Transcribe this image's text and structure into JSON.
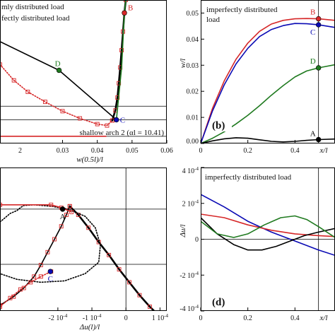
{
  "chart_data": [
    {
      "id": "a",
      "type": "line",
      "xlabel": "w(0.5l)/l",
      "ylabel": "",
      "xlim": [
        0.012,
        0.06
      ],
      "ylim": [
        0,
        10
      ],
      "x_ticks": [
        {
          "v": 0.03,
          "label": "0.03"
        },
        {
          "v": 0.04,
          "label": "0.04"
        },
        {
          "v": 0.05,
          "label": "0.05"
        },
        {
          "v": 0.06,
          "label": "0.06"
        }
      ],
      "x_tick_partial": {
        "v": 0.0183,
        "label": "2"
      },
      "legend": [
        "mly distributed load",
        "fectly distributed load"
      ],
      "annotation": "shallow arch 2 (αl = 10.41)",
      "hlines": [
        2.6,
        1.65,
        0.5
      ],
      "points": [
        {
          "label": "B",
          "x": 0.0478,
          "y": 9.1,
          "color": "#d62728"
        },
        {
          "label": "D",
          "x": 0.029,
          "y": 5.1,
          "color": "#1f7a1f"
        },
        {
          "label": "C",
          "x": 0.0455,
          "y": 1.65,
          "color": "#0a0ab4"
        }
      ],
      "series": [
        {
          "color": "#000000",
          "style": "solid-thick",
          "markers": true,
          "x": [
            0.0443,
            0.0452,
            0.0458,
            0.0462,
            0.0466,
            0.047,
            0.0474,
            0.0478,
            0.0482
          ],
          "y": [
            1.6,
            2.3,
            3.2,
            4.2,
            5.3,
            6.5,
            7.8,
            9.1,
            10.0
          ]
        },
        {
          "color": "#000000",
          "style": "solid",
          "markers": false,
          "x": [
            0.012,
            0.029,
            0.0455
          ],
          "y": [
            7.1,
            5.1,
            1.65
          ]
        },
        {
          "color": "#1f7a1f",
          "style": "solid",
          "markers": false,
          "x": [
            0.0455,
            0.047,
            0.0478,
            0.0482
          ],
          "y": [
            1.65,
            5.3,
            9.1,
            10.0
          ]
        },
        {
          "color": "#d62728",
          "style": "dotted",
          "markers": true,
          "x": [
            0.012,
            0.016,
            0.02,
            0.025,
            0.03,
            0.035,
            0.04,
            0.0428,
            0.0443
          ],
          "y": [
            5.5,
            4.4,
            3.6,
            2.9,
            2.25,
            1.75,
            1.35,
            1.25,
            1.6
          ]
        },
        {
          "color": "#d62728",
          "style": "solid",
          "markers": false,
          "x": [
            0.012,
            0.0425
          ],
          "y": [
            0.5,
            0.5
          ]
        }
      ]
    },
    {
      "id": "b",
      "type": "line",
      "panel_label": "(b)",
      "title": "imperfectly distributed load",
      "xlabel": "x/l",
      "ylabel": "w/l",
      "xlim": [
        0,
        0.57
      ],
      "ylim": [
        0,
        0.055
      ],
      "x_ticks": [
        {
          "v": 0,
          "label": "0"
        },
        {
          "v": 0.2,
          "label": "0.2"
        },
        {
          "v": 0.4,
          "label": "0.4"
        }
      ],
      "y_ticks": [
        {
          "v": 0,
          "label": "0.00"
        },
        {
          "v": 0.01,
          "label": "0.01"
        },
        {
          "v": 0.02,
          "label": "0.02"
        },
        {
          "v": 0.03,
          "label": "0.03"
        },
        {
          "v": 0.04,
          "label": "0.04"
        },
        {
          "v": 0.05,
          "label": "0.05"
        }
      ],
      "vline": 0.5,
      "points": [
        {
          "label": "B",
          "x": 0.5,
          "y": 0.0478,
          "color": "#d62728"
        },
        {
          "label": "C",
          "x": 0.5,
          "y": 0.0455,
          "color": "#0a0ab4"
        },
        {
          "label": "D",
          "x": 0.5,
          "y": 0.029,
          "color": "#1f7a1f"
        },
        {
          "label": "A",
          "x": 0.5,
          "y": 0.0015,
          "color": "#000000"
        }
      ],
      "series": [
        {
          "color": "#d62728",
          "x": [
            0,
            0.05,
            0.1,
            0.15,
            0.2,
            0.25,
            0.3,
            0.35,
            0.4,
            0.45,
            0.5,
            0.57
          ],
          "y": [
            0,
            0.0135,
            0.024,
            0.0323,
            0.0385,
            0.043,
            0.0458,
            0.0472,
            0.0478,
            0.0479,
            0.0478,
            0.0472
          ]
        },
        {
          "color": "#0a0ab4",
          "x": [
            0,
            0.05,
            0.1,
            0.15,
            0.2,
            0.25,
            0.3,
            0.35,
            0.4,
            0.45,
            0.5,
            0.57
          ],
          "y": [
            0,
            0.0125,
            0.0225,
            0.0305,
            0.0365,
            0.041,
            0.0437,
            0.0452,
            0.046,
            0.0459,
            0.0455,
            0.0445
          ]
        },
        {
          "color": "#1f7a1f",
          "x": [
            0,
            0.05,
            0.1,
            0.15,
            0.2,
            0.25,
            0.3,
            0.35,
            0.4,
            0.45,
            0.5,
            0.57
          ],
          "y": [
            0,
            0.002,
            0.0045,
            0.0075,
            0.0108,
            0.0145,
            0.0185,
            0.0222,
            0.0255,
            0.0278,
            0.029,
            0.0302
          ]
        },
        {
          "color": "#000000",
          "x": [
            0,
            0.05,
            0.1,
            0.15,
            0.2,
            0.25,
            0.3,
            0.35,
            0.4,
            0.45,
            0.5,
            0.57
          ],
          "y": [
            0,
            0.001,
            0.0018,
            0.0022,
            0.002,
            0.0014,
            0.0008,
            0.0006,
            0.0008,
            0.0012,
            0.0015,
            0.0017
          ]
        }
      ]
    },
    {
      "id": "c",
      "type": "line",
      "xlabel": "Δu(l)/l",
      "ylabel": "",
      "xlim": [
        -0.00037,
        0.00012
      ],
      "ylim": [
        0,
        10
      ],
      "x_ticks": [
        {
          "v": -0.0002,
          "label": "-2 10",
          "exp": "-4"
        },
        {
          "v": -0.0001,
          "label": "-1 10",
          "exp": "-4"
        },
        {
          "v": 0,
          "label": "0"
        },
        {
          "v": 0.0001,
          "label": "1 10",
          "exp": "-4"
        }
      ],
      "vline": 0,
      "hlines": [
        7.1,
        3.25
      ],
      "points": [
        {
          "label": "A",
          "x": -0.000186,
          "y": 7.1,
          "color": "#000000"
        },
        {
          "label": "C",
          "x": -0.000222,
          "y": 2.75,
          "color": "#0a0ab4"
        }
      ],
      "series": [
        {
          "color": "#000000",
          "style": "solid-thick",
          "markers": true,
          "x": [
            -0.000165,
            -0.00014,
            -0.00011,
            -8e-05,
            -5e-05,
            -2e-05,
            1e-05,
            4e-05,
            7e-05,
            0.0001
          ],
          "y": [
            7.3,
            6.7,
            5.8,
            4.8,
            3.9,
            2.9,
            2.0,
            1.1,
            0.3,
            -0.4
          ]
        },
        {
          "color": "#000000",
          "style": "solid",
          "markers": true,
          "x": [
            -0.00037,
            -0.00033,
            -0.0003,
            -0.00027,
            -0.00025,
            -0.00023,
            -0.00021,
            -0.00019,
            -0.000175,
            -0.000165
          ],
          "y": [
            0.4,
            1.0,
            1.6,
            2.4,
            3.2,
            4.1,
            5.0,
            5.9,
            6.7,
            7.3
          ]
        },
        {
          "color": "#000000",
          "style": "dotted",
          "markers": false,
          "x": [
            -0.00037,
            -0.00034,
            -0.00032,
            -0.00031,
            -0.0003,
            -0.00027,
            -0.00022,
            -0.00017,
            -0.00012,
            -9e-05,
            -7.5e-05,
            -8e-05,
            -0.00012,
            -0.00018,
            -0.00025,
            -0.00032,
            -0.00037
          ],
          "y": [
            6.2,
            6.8,
            7.0,
            7.2,
            7.35,
            7.4,
            7.3,
            7.1,
            6.6,
            5.8,
            4.6,
            3.4,
            2.6,
            2.1,
            2.0,
            2.2,
            2.6
          ]
        },
        {
          "color": "#d62728",
          "style": "solid",
          "markers": true,
          "x": [
            -0.00037,
            -0.00022,
            -0.00019,
            -0.00016
          ],
          "y": [
            7.4,
            7.4,
            7.2,
            6.9
          ]
        },
        {
          "color": "#d62728",
          "style": "dotted",
          "markers": true,
          "x": [
            -0.00037,
            -0.00034,
            -0.00031,
            -0.00028,
            -0.00025,
            -0.00022
          ],
          "y": [
            0.3,
            0.9,
            1.5,
            2.0,
            2.4,
            2.75
          ]
        }
      ]
    },
    {
      "id": "d",
      "type": "line",
      "panel_label": "(d)",
      "title": "imperfectly distributed load",
      "xlabel": "x/l",
      "ylabel": "Δu/l",
      "xlim": [
        0,
        0.57
      ],
      "ylim": [
        -0.0004,
        0.0004
      ],
      "x_ticks": [
        {
          "v": 0,
          "label": "0"
        },
        {
          "v": 0.2,
          "label": "0.2"
        },
        {
          "v": 0.4,
          "label": "0.4"
        }
      ],
      "y_ticks": [
        {
          "v": 0.0004,
          "label": "4 10",
          "exp": "-4"
        },
        {
          "v": 0.0002,
          "label": "2 10",
          "exp": "-4"
        },
        {
          "v": 0,
          "label": "0"
        },
        {
          "v": -0.0002,
          "label": "-2 10",
          "exp": "-4"
        },
        {
          "v": -0.0004,
          "label": "-4 10",
          "exp": "-4"
        }
      ],
      "vline": 0.5,
      "hline": 0,
      "series": [
        {
          "color": "#0a0ab4",
          "x": [
            0,
            0.1,
            0.2,
            0.3,
            0.4,
            0.5,
            0.57
          ],
          "y": [
            0.00025,
            0.00018,
            0.0001,
            4e-05,
            -1e-05,
            -6e-05,
            -9e-05
          ]
        },
        {
          "color": "#d62728",
          "x": [
            0,
            0.1,
            0.2,
            0.3,
            0.4,
            0.5,
            0.57
          ],
          "y": [
            0.00014,
            0.00012,
            8e-05,
            5e-05,
            3e-05,
            2e-05,
            1.5e-05
          ]
        },
        {
          "color": "#000000",
          "x": [
            0,
            0.07,
            0.14,
            0.2,
            0.26,
            0.32,
            0.38,
            0.44,
            0.5,
            0.57
          ],
          "y": [
            0.00012,
            3e-05,
            -3e-05,
            -6e-05,
            -6e-05,
            -4e-05,
            -1e-05,
            2e-05,
            4e-05,
            6e-05
          ]
        },
        {
          "color": "#1f7a1f",
          "x": [
            0,
            0.07,
            0.14,
            0.2,
            0.27,
            0.34,
            0.4,
            0.45,
            0.5,
            0.57
          ],
          "y": [
            0.0001,
            3e-05,
            1e-05,
            3e-05,
            8e-05,
            0.00012,
            0.00013,
            0.00011,
            7e-05,
            1e-05
          ]
        }
      ]
    }
  ]
}
